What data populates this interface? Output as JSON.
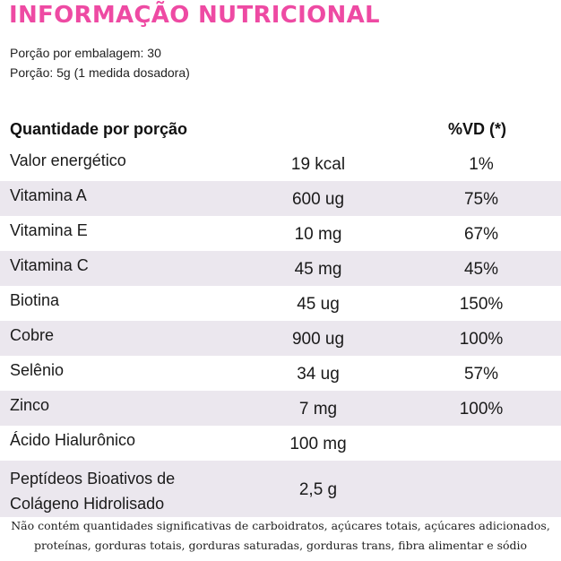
{
  "title": "INFORMAÇÃO NUTRICIONAL",
  "serving": {
    "per_package": "Porção por embalagem: 30",
    "portion": "Porção: 5g (1 medida dosadora)"
  },
  "table": {
    "header_quantity": "Quantidade por porção",
    "header_vd": "%VD (*)",
    "rows": [
      {
        "name": "Valor energético",
        "amount": "19 kcal",
        "vd": "1%"
      },
      {
        "name": "Vitamina A",
        "amount": "600 ug",
        "vd": "75%"
      },
      {
        "name": "Vitamina E",
        "amount": "10 mg",
        "vd": "67%"
      },
      {
        "name": "Vitamina C",
        "amount": "45 mg",
        "vd": "45%"
      },
      {
        "name": "Biotina",
        "amount": "45 ug",
        "vd": "150%"
      },
      {
        "name": "Cobre",
        "amount": "900 ug",
        "vd": "100%"
      },
      {
        "name": "Selênio",
        "amount": "34 ug",
        "vd": "57%"
      },
      {
        "name": "Zinco",
        "amount": "7 mg",
        "vd": "100%"
      },
      {
        "name": "Ácido Hialurônico",
        "amount": "100 mg",
        "vd": ""
      },
      {
        "name": "Peptídeos Bioativos de Colágeno Hidrolisado",
        "amount": "2,5 g",
        "vd": ""
      }
    ]
  },
  "footnote": {
    "line1": "Não contém quantidades significativas de carboidratos, açúcares totais, açúcares adicionados,",
    "line2": "proteínas, gorduras totais, gorduras saturadas, gorduras trans, fibra alimentar e sódio"
  }
}
